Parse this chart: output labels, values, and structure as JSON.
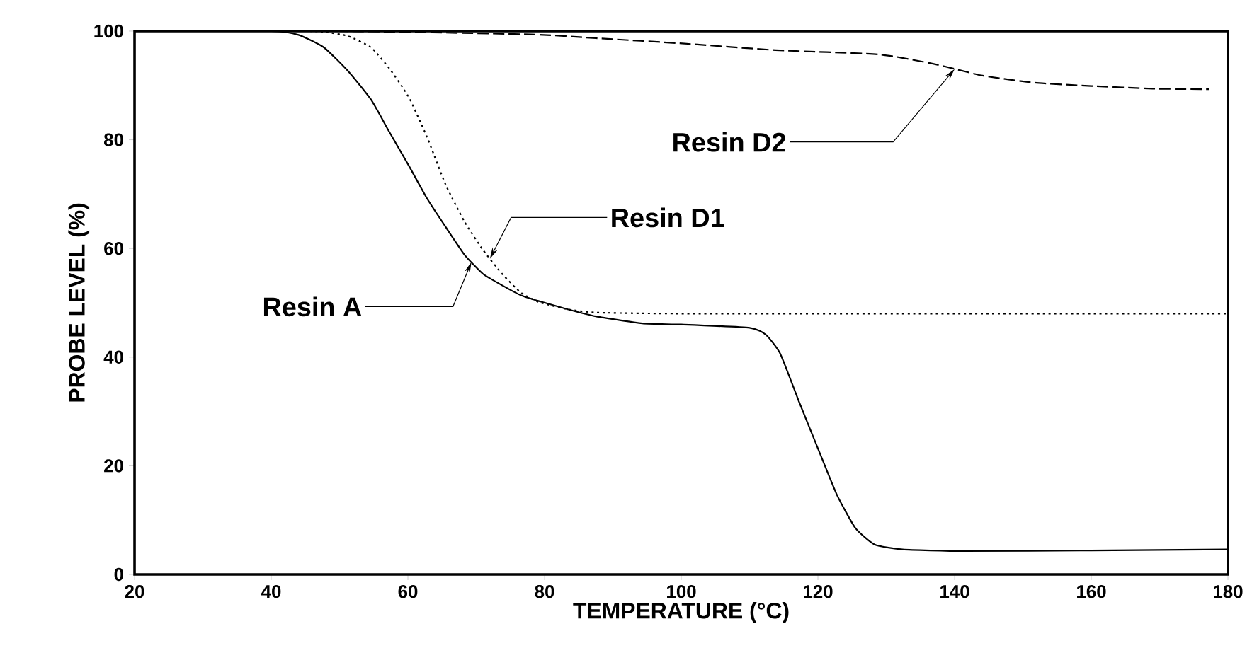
{
  "chart_data": {
    "type": "line",
    "xlabel": "TEMPERATURE (°C)",
    "ylabel": "PROBE LEVEL (%)",
    "xlim": [
      20,
      180
    ],
    "ylim": [
      0,
      100
    ],
    "xticks": [
      20,
      40,
      60,
      80,
      100,
      120,
      140,
      160,
      180
    ],
    "yticks": [
      0,
      20,
      40,
      60,
      80,
      100
    ],
    "grid": false,
    "marker": "none",
    "series": [
      {
        "color": "#000000",
        "line_style": "solid",
        "x": [
          20,
          40,
          44,
          47.7,
          51.2,
          54.6,
          57.3,
          60.1,
          62.8,
          65.5,
          68.3,
          71.0,
          73.8,
          76.5,
          79.2,
          83.4,
          87.5,
          94.3,
          100,
          110,
          112.4,
          114.5,
          117.2,
          120,
          122.8,
          125.5,
          128.3,
          132.4,
          141.4,
          160,
          180
        ],
        "values": [
          100,
          100,
          99.3,
          97.0,
          92.7,
          87.4,
          81.4,
          75.3,
          69.2,
          64.0,
          58.8,
          55.3,
          53.2,
          51.4,
          50.3,
          48.8,
          47.5,
          46.2,
          46.0,
          45.4,
          44.1,
          40.6,
          31.9,
          23.2,
          14.6,
          8.5,
          5.5,
          4.6,
          4.3,
          4.4,
          4.6
        ]
      },
      {
        "color": "#000000",
        "line_style": "dotted",
        "x": [
          20,
          45,
          48,
          51.2,
          54.6,
          57.3,
          60.1,
          62.8,
          65.5,
          68.3,
          71.0,
          73.8,
          76.5,
          79.2,
          83.4,
          87.5,
          100,
          140,
          180
        ],
        "values": [
          100,
          100,
          99.8,
          99.1,
          97.0,
          93.1,
          87.9,
          80.5,
          71.8,
          64.9,
          59.7,
          55.3,
          51.9,
          50.1,
          48.8,
          48.2,
          48.0,
          48.0,
          48.0
        ]
      },
      {
        "color": "#000000",
        "line_style": "dashed",
        "x": [
          20,
          50,
          77.9,
          87.5,
          100.5,
          113.8,
          129,
          137.2,
          144.1,
          151.7,
          160,
          169,
          177.2
        ],
        "values": [
          100,
          100,
          99.4,
          98.7,
          97.7,
          96.5,
          95.7,
          93.9,
          91.8,
          90.5,
          89.9,
          89.4,
          89.3
        ]
      }
    ],
    "annotations": [
      {
        "text": "Resin A",
        "x": 69.3,
        "y": 57.5
      },
      {
        "text": "Resin D1",
        "x": 72,
        "y": 58.1
      },
      {
        "text": "Resin D2",
        "x": 140,
        "y": 93
      }
    ]
  }
}
